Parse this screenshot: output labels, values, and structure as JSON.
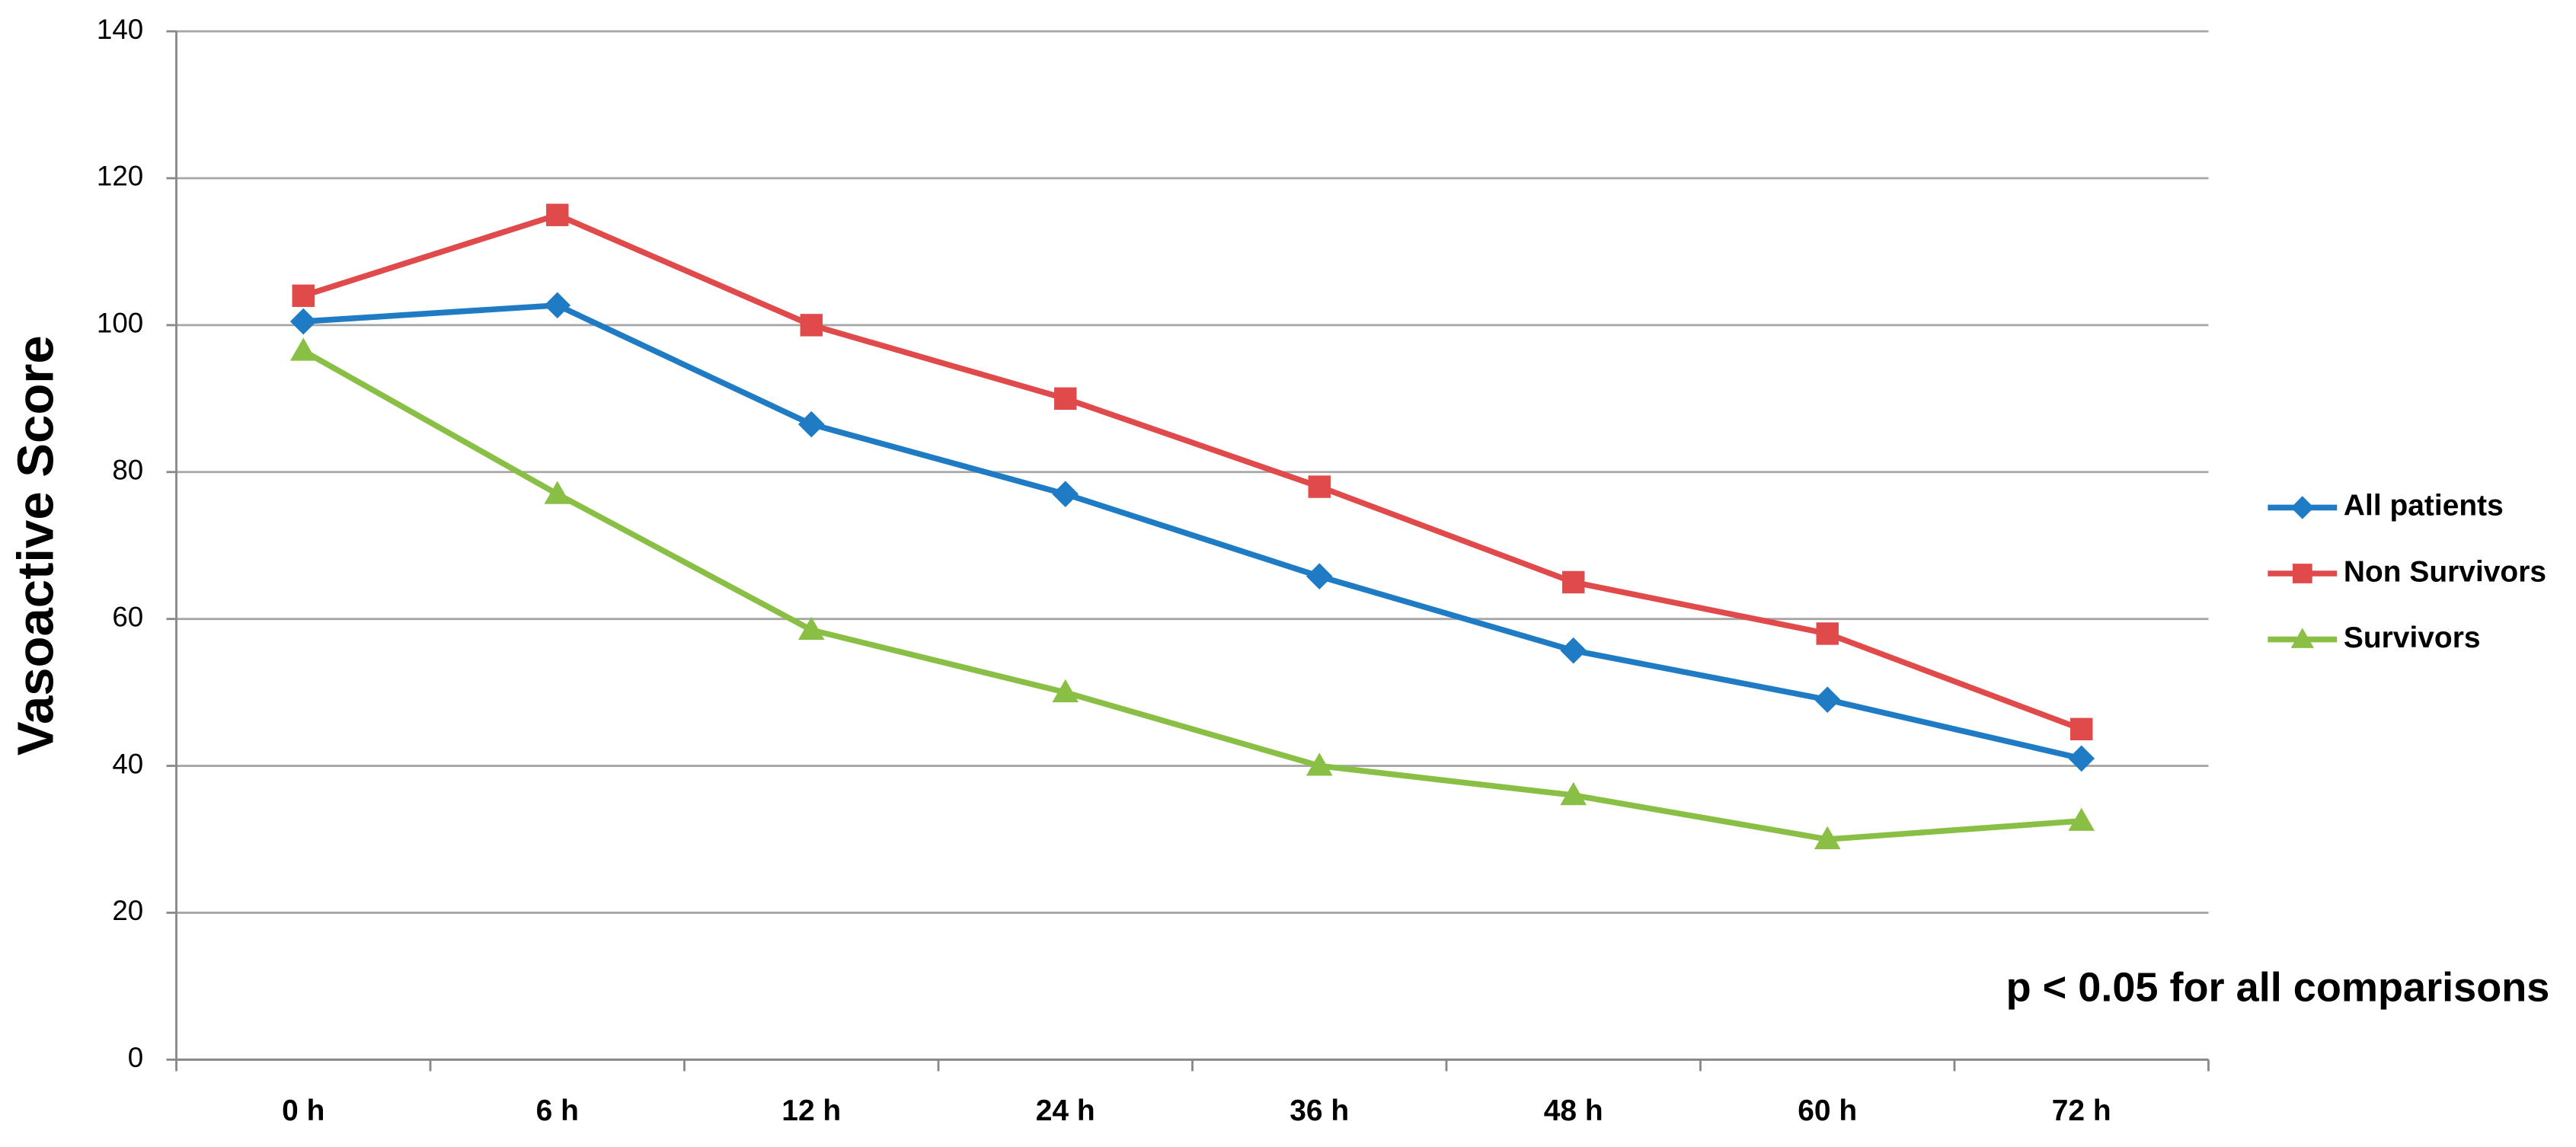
{
  "chart_data": {
    "type": "line",
    "y_label": "Vasoactive Score",
    "annotation": "p < 0.05 for all comparisons",
    "categories": [
      "0 h",
      "6 h",
      "12 h",
      "24 h",
      "36 h",
      "48 h",
      "60 h",
      "72 h"
    ],
    "series": [
      {
        "name": "All patients",
        "color": "#1f7cc4",
        "marker": "diamond",
        "values": [
          100.5,
          102.7,
          86.5,
          77,
          65.8,
          55.7,
          49,
          41
        ]
      },
      {
        "name": "Non Survivors",
        "color": "#e04a4a",
        "marker": "square",
        "values": [
          104,
          115,
          100,
          90,
          78,
          65,
          58,
          45
        ]
      },
      {
        "name": "Survivors",
        "color": "#8abf45",
        "marker": "triangle",
        "values": [
          96.5,
          77,
          58.5,
          50,
          40,
          36,
          30,
          32.5
        ]
      }
    ],
    "ylim": [
      0,
      140
    ],
    "yticks": [
      0,
      20,
      40,
      60,
      80,
      100,
      120,
      140
    ],
    "grid": true,
    "legend": "right"
  }
}
